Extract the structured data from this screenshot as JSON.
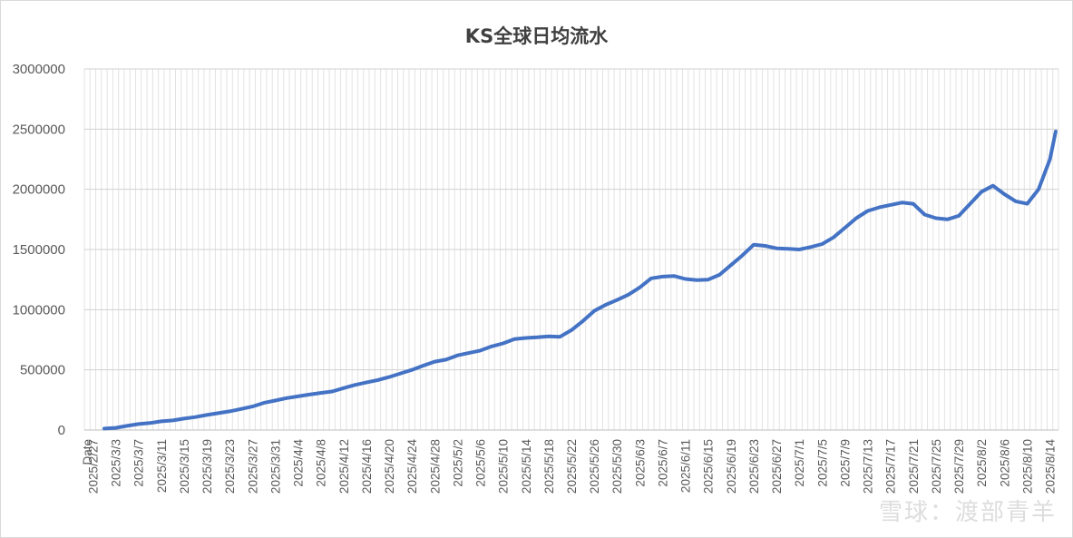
{
  "chart_data": {
    "type": "line",
    "title": "KS全球日均流水",
    "line_color": "#4472c4",
    "grid": true,
    "ylim": [
      0,
      3000000
    ],
    "y_ticks": [
      "0",
      "500000",
      "1000000",
      "1500000",
      "2000000",
      "2500000",
      "3000000"
    ],
    "x_first_label": "Date",
    "x_tick_labels": [
      "2025/2/27",
      "2025/3/3",
      "2025/3/7",
      "2025/3/11",
      "2025/3/15",
      "2025/3/19",
      "2025/3/23",
      "2025/3/27",
      "2025/3/31",
      "2025/4/4",
      "2025/4/8",
      "2025/4/12",
      "2025/4/16",
      "2025/4/20",
      "2025/4/24",
      "2025/4/28",
      "2025/5/2",
      "2025/5/6",
      "2025/5/10",
      "2025/5/14",
      "2025/5/18",
      "2025/5/22",
      "2025/5/26",
      "2025/5/30",
      "2025/6/3",
      "2025/6/7",
      "2025/6/11",
      "2025/6/15",
      "2025/6/19",
      "2025/6/23",
      "2025/6/27",
      "2025/7/1",
      "2025/7/5",
      "2025/7/9",
      "2025/7/13",
      "2025/7/17",
      "2025/7/21",
      "2025/7/25",
      "2025/7/29",
      "2025/8/2",
      "2025/8/6",
      "2025/8/10",
      "2025/8/14"
    ],
    "series": [
      {
        "points": [
          [
            "2025/3/1",
            12000
          ],
          [
            "2025/3/3",
            18000
          ],
          [
            "2025/3/5",
            35000
          ],
          [
            "2025/3/7",
            50000
          ],
          [
            "2025/3/9",
            58000
          ],
          [
            "2025/3/11",
            72000
          ],
          [
            "2025/3/13",
            80000
          ],
          [
            "2025/3/15",
            95000
          ],
          [
            "2025/3/17",
            108000
          ],
          [
            "2025/3/19",
            125000
          ],
          [
            "2025/3/21",
            140000
          ],
          [
            "2025/3/23",
            155000
          ],
          [
            "2025/3/25",
            175000
          ],
          [
            "2025/3/27",
            195000
          ],
          [
            "2025/3/29",
            225000
          ],
          [
            "2025/3/31",
            245000
          ],
          [
            "2025/4/2",
            265000
          ],
          [
            "2025/4/4",
            280000
          ],
          [
            "2025/4/6",
            295000
          ],
          [
            "2025/4/8",
            308000
          ],
          [
            "2025/4/10",
            320000
          ],
          [
            "2025/4/12",
            348000
          ],
          [
            "2025/4/14",
            375000
          ],
          [
            "2025/4/16",
            395000
          ],
          [
            "2025/4/18",
            415000
          ],
          [
            "2025/4/20",
            440000
          ],
          [
            "2025/4/22",
            470000
          ],
          [
            "2025/4/24",
            500000
          ],
          [
            "2025/4/26",
            535000
          ],
          [
            "2025/4/28",
            568000
          ],
          [
            "2025/4/30",
            585000
          ],
          [
            "2025/5/2",
            620000
          ],
          [
            "2025/5/4",
            640000
          ],
          [
            "2025/5/6",
            660000
          ],
          [
            "2025/5/8",
            695000
          ],
          [
            "2025/5/10",
            720000
          ],
          [
            "2025/5/12",
            755000
          ],
          [
            "2025/5/14",
            765000
          ],
          [
            "2025/5/16",
            770000
          ],
          [
            "2025/5/18",
            778000
          ],
          [
            "2025/5/20",
            775000
          ],
          [
            "2025/5/22",
            830000
          ],
          [
            "2025/5/24",
            905000
          ],
          [
            "2025/5/26",
            990000
          ],
          [
            "2025/5/28",
            1040000
          ],
          [
            "2025/5/30",
            1080000
          ],
          [
            "2025/6/1",
            1125000
          ],
          [
            "2025/6/3",
            1185000
          ],
          [
            "2025/6/5",
            1260000
          ],
          [
            "2025/6/7",
            1275000
          ],
          [
            "2025/6/9",
            1280000
          ],
          [
            "2025/6/11",
            1255000
          ],
          [
            "2025/6/13",
            1245000
          ],
          [
            "2025/6/15",
            1250000
          ],
          [
            "2025/6/17",
            1290000
          ],
          [
            "2025/6/19",
            1370000
          ],
          [
            "2025/6/21",
            1450000
          ],
          [
            "2025/6/23",
            1540000
          ],
          [
            "2025/6/25",
            1530000
          ],
          [
            "2025/6/27",
            1510000
          ],
          [
            "2025/6/29",
            1505000
          ],
          [
            "2025/7/1",
            1500000
          ],
          [
            "2025/7/3",
            1520000
          ],
          [
            "2025/7/5",
            1545000
          ],
          [
            "2025/7/7",
            1600000
          ],
          [
            "2025/7/9",
            1680000
          ],
          [
            "2025/7/11",
            1760000
          ],
          [
            "2025/7/13",
            1820000
          ],
          [
            "2025/7/15",
            1850000
          ],
          [
            "2025/7/17",
            1870000
          ],
          [
            "2025/7/19",
            1890000
          ],
          [
            "2025/7/21",
            1880000
          ],
          [
            "2025/7/23",
            1790000
          ],
          [
            "2025/7/25",
            1760000
          ],
          [
            "2025/7/27",
            1750000
          ],
          [
            "2025/7/29",
            1780000
          ],
          [
            "2025/7/31",
            1880000
          ],
          [
            "2025/8/2",
            1980000
          ],
          [
            "2025/8/4",
            2030000
          ],
          [
            "2025/8/6",
            1960000
          ],
          [
            "2025/8/8",
            1900000
          ],
          [
            "2025/8/10",
            1880000
          ],
          [
            "2025/8/12",
            2000000
          ],
          [
            "2025/8/14",
            2250000
          ],
          [
            "2025/8/15",
            2480000
          ]
        ]
      }
    ]
  },
  "watermark": "雪球：渡部青羊"
}
